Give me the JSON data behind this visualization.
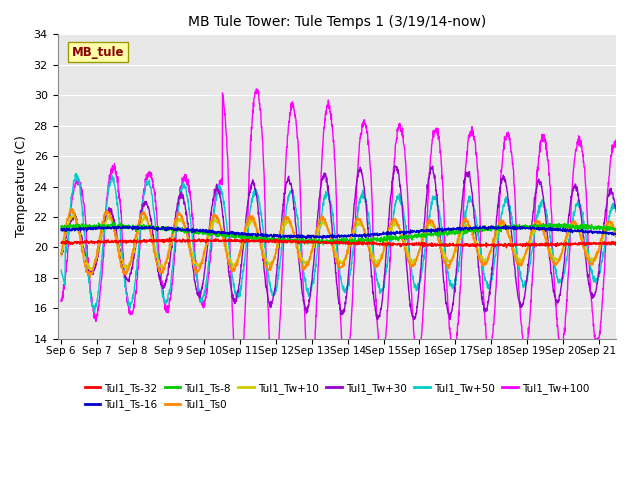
{
  "title": "MB Tule Tower: Tule Temps 1 (3/19/14-now)",
  "ylabel": "Temperature (C)",
  "ylim": [
    14,
    34
  ],
  "yticks": [
    14,
    16,
    18,
    20,
    22,
    24,
    26,
    28,
    30,
    32,
    34
  ],
  "x_labels": [
    "Sep 6",
    "Sep 7",
    "Sep 8",
    "Sep 9",
    "Sep 10",
    "Sep 11",
    "Sep 12",
    "Sep 13",
    "Sep 14",
    "Sep 15",
    "Sep 16",
    "Sep 17",
    "Sep 18",
    "Sep 19",
    "Sep 20",
    "Sep 21"
  ],
  "station_label": "MB_tule",
  "station_label_color": "#8B0000",
  "station_box_facecolor": "#FFFFAA",
  "station_box_edgecolor": "#999900",
  "background_color": "#E8E8E8",
  "grid_color": "#FFFFFF",
  "series": [
    {
      "label": "Tul1_Ts-32",
      "color": "#FF0000"
    },
    {
      "label": "Tul1_Ts-16",
      "color": "#0000CC"
    },
    {
      "label": "Tul1_Ts-8",
      "color": "#00CC00"
    },
    {
      "label": "Tul1_Ts0",
      "color": "#FF8800"
    },
    {
      "label": "Tul1_Tw+10",
      "color": "#CCCC00"
    },
    {
      "label": "Tul1_Tw+30",
      "color": "#9900CC"
    },
    {
      "label": "Tul1_Tw+50",
      "color": "#00CCCC"
    },
    {
      "label": "Tul1_Tw+100",
      "color": "#FF00FF"
    }
  ],
  "figsize": [
    6.4,
    4.8
  ],
  "dpi": 100
}
